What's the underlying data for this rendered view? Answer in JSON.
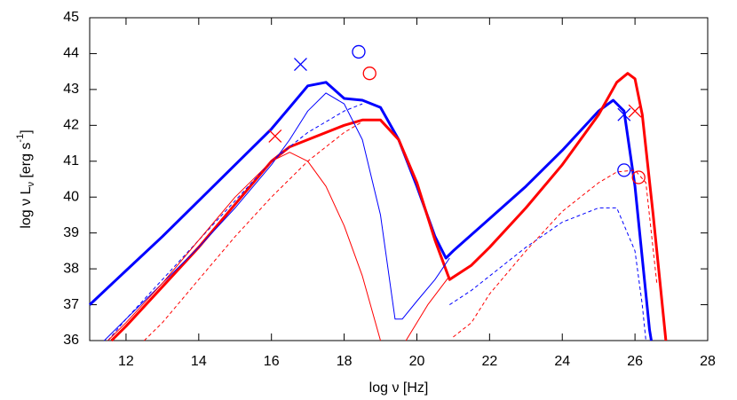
{
  "chart_data": {
    "type": "line",
    "xlabel": "log ν [Hz]",
    "ylabel": [
      "log ν L",
      "ν",
      " [erg s",
      "-1",
      "]"
    ],
    "xlim": [
      11,
      28
    ],
    "ylim": [
      36,
      45
    ],
    "xticks": [
      12,
      14,
      16,
      18,
      20,
      22,
      24,
      26,
      28
    ],
    "yticks": [
      36,
      37,
      38,
      39,
      40,
      41,
      42,
      43,
      44,
      45
    ],
    "series": [
      {
        "color": "#0000ff",
        "width": 3,
        "dashed": false,
        "x": [
          11,
          12,
          13,
          14,
          15,
          16,
          16.5,
          17,
          17.5,
          18,
          18.5,
          19,
          19.5,
          20,
          20.5,
          20.8,
          21,
          22,
          23,
          24,
          25,
          25.4,
          25.7,
          26,
          26.2,
          26.4,
          26.45
        ],
        "values": [
          37.0,
          37.95,
          38.9,
          39.9,
          40.9,
          41.9,
          42.5,
          43.1,
          43.2,
          42.75,
          42.7,
          42.5,
          41.6,
          40.3,
          38.9,
          38.3,
          38.5,
          39.4,
          40.3,
          41.3,
          42.4,
          42.7,
          42.4,
          40.3,
          38.3,
          36.3,
          36
        ]
      },
      {
        "color": "#ff0000",
        "width": 3,
        "dashed": false,
        "x": [
          11.6,
          12,
          13,
          14,
          15,
          16,
          16.5,
          17,
          18,
          18.5,
          19,
          19.5,
          20,
          20.5,
          20.9,
          21.5,
          22,
          23,
          24,
          25,
          25.5,
          25.8,
          26,
          26.2,
          26.5,
          26.7,
          26.85
        ],
        "values": [
          36,
          36.4,
          37.5,
          38.6,
          39.8,
          41.0,
          41.4,
          41.6,
          42.0,
          42.15,
          42.15,
          41.6,
          40.4,
          38.8,
          37.7,
          38.1,
          38.6,
          39.7,
          40.9,
          42.3,
          43.2,
          43.45,
          43.3,
          42.3,
          39.5,
          37.5,
          36
        ]
      },
      {
        "color": "#0000ff",
        "width": 1,
        "dashed": false,
        "x": [
          11.4,
          12,
          13,
          14,
          15,
          16,
          16.5,
          17,
          17.5,
          18,
          18.5,
          19,
          19.4,
          19.6,
          20,
          20.5,
          20.9
        ],
        "values": [
          36,
          36.6,
          37.6,
          38.6,
          39.7,
          40.9,
          41.6,
          42.4,
          42.9,
          42.6,
          41.6,
          39.5,
          36.6,
          36.6,
          37.1,
          37.7,
          38.3
        ]
      },
      {
        "color": "#0000ff",
        "width": 1,
        "dashed": true,
        "x": [
          11.5,
          12,
          13,
          14,
          15,
          16,
          17,
          18,
          18.5,
          null,
          20.9,
          21.5,
          22,
          23,
          24,
          25,
          25.5,
          26,
          26.2,
          26.3
        ],
        "values": [
          36,
          36.6,
          37.7,
          38.8,
          39.9,
          41.0,
          41.8,
          42.4,
          42.6,
          null,
          37.0,
          37.4,
          37.8,
          38.6,
          39.3,
          39.7,
          39.7,
          38.5,
          37,
          36
        ]
      },
      {
        "color": "#ff0000",
        "width": 1,
        "dashed": false,
        "x": [
          11.5,
          12,
          13,
          14,
          15,
          16,
          16.5,
          17,
          17.5,
          18,
          18.5,
          19,
          null,
          19.7,
          20.3,
          20.9
        ],
        "values": [
          36,
          36.5,
          37.6,
          38.8,
          40.0,
          41.0,
          41.25,
          41.0,
          40.3,
          39.2,
          37.8,
          36,
          null,
          36,
          37,
          37.8
        ]
      },
      {
        "color": "#ff0000",
        "width": 1,
        "dashed": true,
        "x": [
          12.5,
          13,
          14,
          15,
          16,
          17,
          18,
          18.5,
          null,
          21,
          21.5,
          22,
          23,
          24,
          25,
          25.5,
          26,
          26.3,
          26.6
        ],
        "values": [
          36,
          36.5,
          37.7,
          38.9,
          40.0,
          41.0,
          41.8,
          42.1,
          null,
          36.1,
          36.5,
          37.3,
          38.5,
          39.6,
          40.4,
          40.7,
          40.75,
          40.4,
          37.6
        ]
      },
      {
        "color": "#0000ff",
        "marker": "x",
        "x": [
          16.8,
          25.7
        ],
        "values": [
          43.7,
          42.3
        ]
      },
      {
        "color": "#ff0000",
        "marker": "x",
        "x": [
          16.1,
          26.0
        ],
        "values": [
          41.7,
          42.4
        ]
      },
      {
        "color": "#0000ff",
        "marker": "circle",
        "x": [
          18.4,
          25.7
        ],
        "values": [
          44.05,
          40.75
        ]
      },
      {
        "color": "#ff0000",
        "marker": "circle",
        "x": [
          18.7,
          26.1
        ],
        "values": [
          43.45,
          40.55
        ]
      }
    ]
  }
}
